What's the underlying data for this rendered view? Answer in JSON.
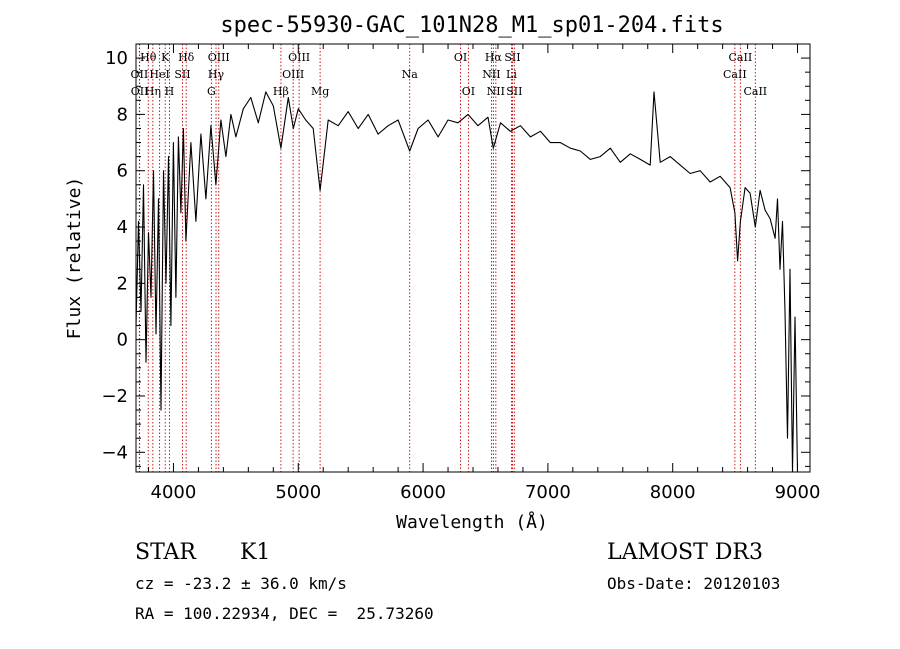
{
  "chart_data": {
    "type": "line",
    "title": "spec-55930-GAC_101N28_M1_sp01-204.fits",
    "xlabel": "Wavelength (Å)",
    "ylabel": "Flux (relative)",
    "xlim": [
      3700,
      9100
    ],
    "ylim": [
      -4.7,
      10.5
    ],
    "x_ticks": [
      4000,
      5000,
      6000,
      7000,
      8000,
      9000
    ],
    "y_ticks": [
      -4,
      -2,
      0,
      2,
      4,
      6,
      8,
      10
    ],
    "grid": false,
    "series": [
      {
        "name": "flux",
        "x": [
          3700,
          3720,
          3740,
          3760,
          3780,
          3800,
          3820,
          3840,
          3860,
          3880,
          3900,
          3920,
          3940,
          3960,
          3980,
          4000,
          4020,
          4040,
          4060,
          4080,
          4100,
          4140,
          4180,
          4220,
          4260,
          4300,
          4340,
          4380,
          4420,
          4460,
          4500,
          4560,
          4620,
          4680,
          4740,
          4800,
          4861,
          4920,
          4960,
          5000,
          5060,
          5120,
          5175,
          5240,
          5320,
          5400,
          5480,
          5560,
          5640,
          5720,
          5800,
          5893,
          5960,
          6040,
          6120,
          6200,
          6280,
          6360,
          6440,
          6520,
          6563,
          6620,
          6700,
          6780,
          6860,
          6940,
          7020,
          7100,
          7180,
          7260,
          7340,
          7420,
          7500,
          7580,
          7660,
          7740,
          7820,
          7850,
          7900,
          7980,
          8060,
          8140,
          8220,
          8300,
          8380,
          8460,
          8498,
          8520,
          8542,
          8580,
          8620,
          8662,
          8700,
          8740,
          8780,
          8820,
          8840,
          8860,
          8880,
          8900,
          8920,
          8940,
          8960,
          8980,
          9000
        ],
        "values": [
          0.5,
          4.2,
          1.0,
          5.5,
          -0.8,
          3.8,
          1.5,
          6.0,
          0.2,
          5.0,
          -2.5,
          6.0,
          2.0,
          6.5,
          0.5,
          7.0,
          1.5,
          7.2,
          4.5,
          7.5,
          3.5,
          7.0,
          4.2,
          7.3,
          5.0,
          7.6,
          5.5,
          7.8,
          6.5,
          8.0,
          7.2,
          8.2,
          8.6,
          7.7,
          8.8,
          8.3,
          6.8,
          8.6,
          7.5,
          8.2,
          7.8,
          7.5,
          5.3,
          7.8,
          7.6,
          8.1,
          7.5,
          8.0,
          7.3,
          7.6,
          7.8,
          6.7,
          7.5,
          7.8,
          7.2,
          7.8,
          7.7,
          8.0,
          7.6,
          7.9,
          6.8,
          7.7,
          7.4,
          7.6,
          7.2,
          7.4,
          7.0,
          7.0,
          6.8,
          6.7,
          6.4,
          6.5,
          6.8,
          6.3,
          6.6,
          6.4,
          6.2,
          8.8,
          6.3,
          6.5,
          6.2,
          5.9,
          6.0,
          5.6,
          5.8,
          5.4,
          4.5,
          2.8,
          4.2,
          5.4,
          5.2,
          4.0,
          5.3,
          4.6,
          4.3,
          3.6,
          5.0,
          2.5,
          4.2,
          1.0,
          -3.5,
          2.5,
          -4.7,
          0.8,
          -4.7
        ]
      }
    ],
    "lines": [
      {
        "name": "Hθ",
        "wavelength": 3798,
        "row": 0
      },
      {
        "name": "OII",
        "wavelength": 3727,
        "row": 1
      },
      {
        "name": "OII",
        "wavelength": 3729,
        "row": 2
      },
      {
        "name": "Hη",
        "wavelength": 3835,
        "row": 2
      },
      {
        "name": "HeI",
        "wavelength": 3889,
        "row": 1
      },
      {
        "name": "K",
        "wavelength": 3934,
        "row": 0
      },
      {
        "name": "H",
        "wavelength": 3968,
        "row": 2
      },
      {
        "name": "SII",
        "wavelength": 4072,
        "row": 1
      },
      {
        "name": "Hδ",
        "wavelength": 4102,
        "row": 0
      },
      {
        "name": "G",
        "wavelength": 4304,
        "row": 2
      },
      {
        "name": "Hγ",
        "wavelength": 4341,
        "row": 1
      },
      {
        "name": "OIII",
        "wavelength": 4363,
        "row": 0
      },
      {
        "name": "Hβ",
        "wavelength": 4861,
        "row": 2
      },
      {
        "name": "OIII",
        "wavelength": 4959,
        "row": 1
      },
      {
        "name": "OIII",
        "wavelength": 5007,
        "row": 0
      },
      {
        "name": "Mg",
        "wavelength": 5175,
        "row": 2
      },
      {
        "name": "Na",
        "wavelength": 5893,
        "row": 1
      },
      {
        "name": "OI",
        "wavelength": 6300,
        "row": 0
      },
      {
        "name": "OI",
        "wavelength": 6363,
        "row": 2
      },
      {
        "name": "NII",
        "wavelength": 6548,
        "row": 1
      },
      {
        "name": "Hα",
        "wavelength": 6563,
        "row": 0
      },
      {
        "name": "NII",
        "wavelength": 6583,
        "row": 2
      },
      {
        "name": "Li",
        "wavelength": 6708,
        "row": 1
      },
      {
        "name": "SII",
        "wavelength": 6716,
        "row": 0
      },
      {
        "name": "SII",
        "wavelength": 6731,
        "row": 2
      },
      {
        "name": "CaII",
        "wavelength": 8498,
        "row": 1
      },
      {
        "name": "CaII",
        "wavelength": 8542,
        "row": 0
      },
      {
        "name": "CaII",
        "wavelength": 8662,
        "row": 2
      }
    ]
  },
  "info": {
    "object_class": "STAR",
    "subclass": "K1",
    "survey": "LAMOST DR3",
    "redshift": "cz = -23.2 ± 36.0 km/s",
    "obs_date": "Obs-Date: 20120103",
    "coords": "RA = 100.22934, DEC =  25.73260"
  },
  "colors": {
    "line_marker": "#cc0000",
    "spectrum": "#000000",
    "axes": "#000000"
  }
}
